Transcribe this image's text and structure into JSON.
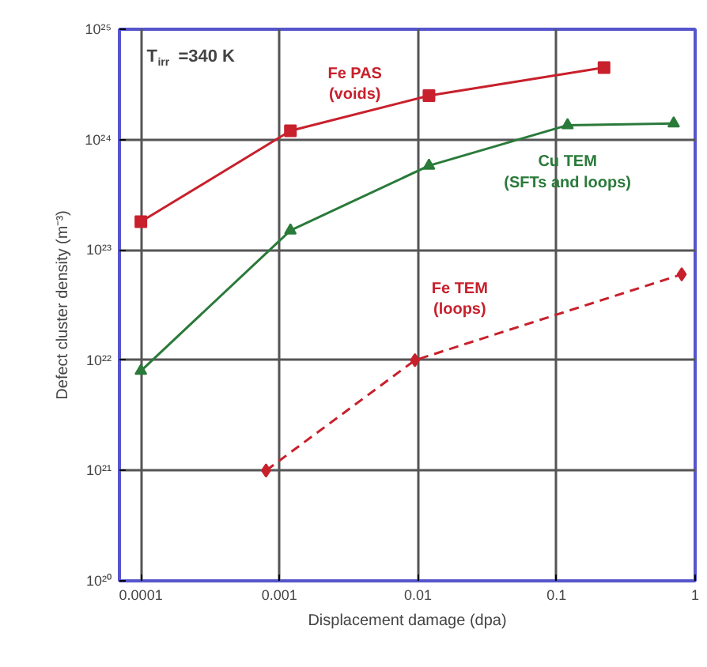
{
  "chart_data": {
    "type": "line",
    "xlabel": "Displacement damage (dpa)",
    "ylabel": "Defect cluster density (m⁻³)",
    "log": "xy",
    "grid": true,
    "legend": false,
    "xlim": [
      7e-05,
      1
    ],
    "ylim": [
      1e+20,
      1e+25
    ],
    "xticks": [
      0.0001,
      0.001,
      0.01,
      0.1,
      1
    ],
    "yticks": [
      {
        "value": 1e+20,
        "label": "10²⁰"
      },
      {
        "value": 1e+21,
        "label": "10²¹"
      },
      {
        "value": 1e+22,
        "label": "10²²"
      },
      {
        "value": 1e+23,
        "label": "10²³"
      },
      {
        "value": 1e+24,
        "label": "10²⁴"
      },
      {
        "value": 1e+25,
        "label": "10²⁵"
      }
    ],
    "annotations": [
      "T$_{irr}$=340 K"
    ],
    "series": [
      {
        "name": "Fe PAS\n(voids)",
        "color": "#c8202c",
        "marker": "square",
        "line_style": "solid",
        "x": [
          0.0001,
          0.0012,
          0.012,
          0.22
        ],
        "values": [
          1.8e+23,
          1.2e+24,
          2.5e+24,
          4.5e+24
        ]
      },
      {
        "name": "Cu TEM\n(SFTs and loops)",
        "color": "#2a7a3a",
        "marker": "triangle",
        "line_style": "solid",
        "x": [
          0.0001,
          0.0012,
          0.012,
          0.12,
          0.7
        ],
        "values": [
          8e+21,
          1.5e+23,
          5.8e+23,
          1.35e+24,
          1.4e+24
        ]
      },
      {
        "name": "Fe TEM\n(loops)",
        "color": "#c8202c",
        "marker": "diamond",
        "line_style": "dashed",
        "x": [
          0.0008,
          0.0095,
          0.8
        ],
        "values": [
          1e+21,
          1e+22,
          6e+22
        ]
      }
    ]
  }
}
